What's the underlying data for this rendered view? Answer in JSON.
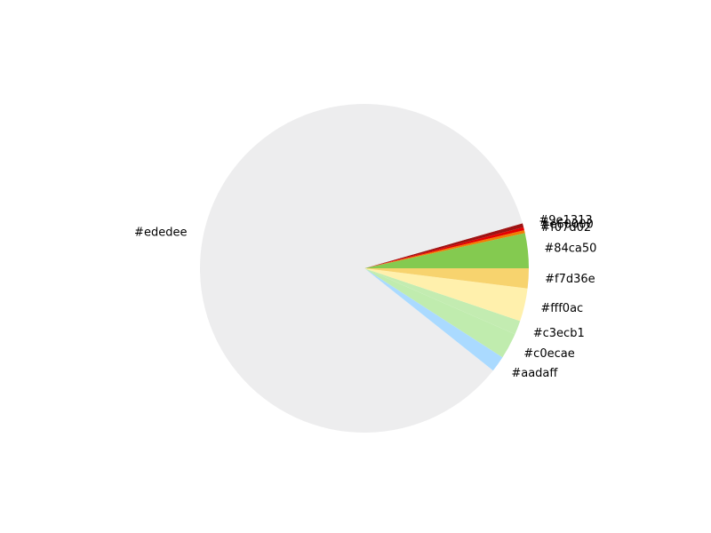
{
  "chart_data": {
    "type": "pie",
    "start_angle_deg": 0,
    "direction": "counterclockwise",
    "slices": [
      {
        "label": "#84ca50",
        "value": 3.5,
        "color": "#84ca50"
      },
      {
        "label": "#f07d02",
        "value": 0.3,
        "color": "#f07d02"
      },
      {
        "label": "#e60000",
        "value": 0.3,
        "color": "#e60000"
      },
      {
        "label": "#9e1313",
        "value": 0.4,
        "color": "#9e1313"
      },
      {
        "label": "#ededee",
        "value": 86.6,
        "color": "#ededee"
      },
      {
        "label": "#aadaff",
        "value": 1.6,
        "color": "#aadaff"
      },
      {
        "label": "#c0ecae",
        "value": 2.6,
        "color": "#c0ecae"
      },
      {
        "label": "#c3ecb1",
        "value": 1.4,
        "color": "#c3ecb1"
      },
      {
        "label": "#fff0ac",
        "value": 3.3,
        "color": "#fff0ac"
      },
      {
        "label": "#f7d36e",
        "value": 2.0,
        "color": "#f7d36e"
      }
    ]
  }
}
